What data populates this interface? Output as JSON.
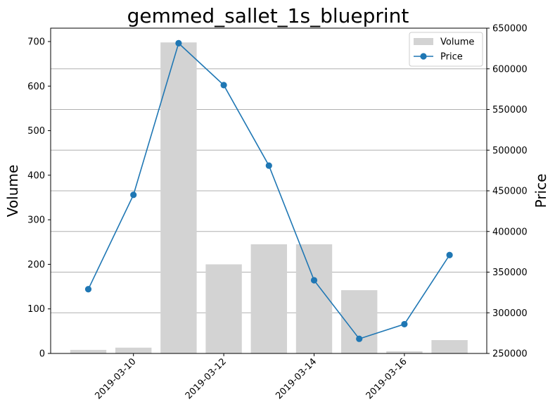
{
  "chart_data": {
    "type": "bar+line",
    "title": "gemmed_sallet_1s_blueprint",
    "xlabel": "",
    "ylabel_left": "Volume",
    "ylabel_right": "Price",
    "dates": [
      "2019-03-09",
      "2019-03-10",
      "2019-03-11",
      "2019-03-12",
      "2019-03-13",
      "2019-03-14",
      "2019-03-15",
      "2019-03-16",
      "2019-03-17"
    ],
    "x_ticks": [
      "2019-03-10",
      "2019-03-12",
      "2019-03-14",
      "2019-03-16"
    ],
    "volume": [
      8,
      13,
      698,
      200,
      245,
      245,
      142,
      5,
      30
    ],
    "price": [
      329000,
      445000,
      631500,
      580000,
      481000,
      340000,
      268000,
      286000,
      371000
    ],
    "ylim_left": [
      0,
      730
    ],
    "ylim_right": [
      250000,
      650000
    ],
    "yticks_left": [
      "0",
      "100",
      "200",
      "300",
      "400",
      "500",
      "600",
      "700"
    ],
    "yticks_right": [
      "250000",
      "300000",
      "350000",
      "400000",
      "450000",
      "500000",
      "550000",
      "600000",
      "650000"
    ],
    "legend": [
      {
        "label": "Volume",
        "kind": "bar",
        "color": "#d3d3d3"
      },
      {
        "label": "Price",
        "kind": "line",
        "color": "#1f77b4"
      }
    ],
    "legend_position": "top-right",
    "grid": "horizontal (right axis)",
    "colors": {
      "bar": "#d3d3d3",
      "line": "#1f77b4",
      "grid": "#b0b0b0"
    }
  }
}
